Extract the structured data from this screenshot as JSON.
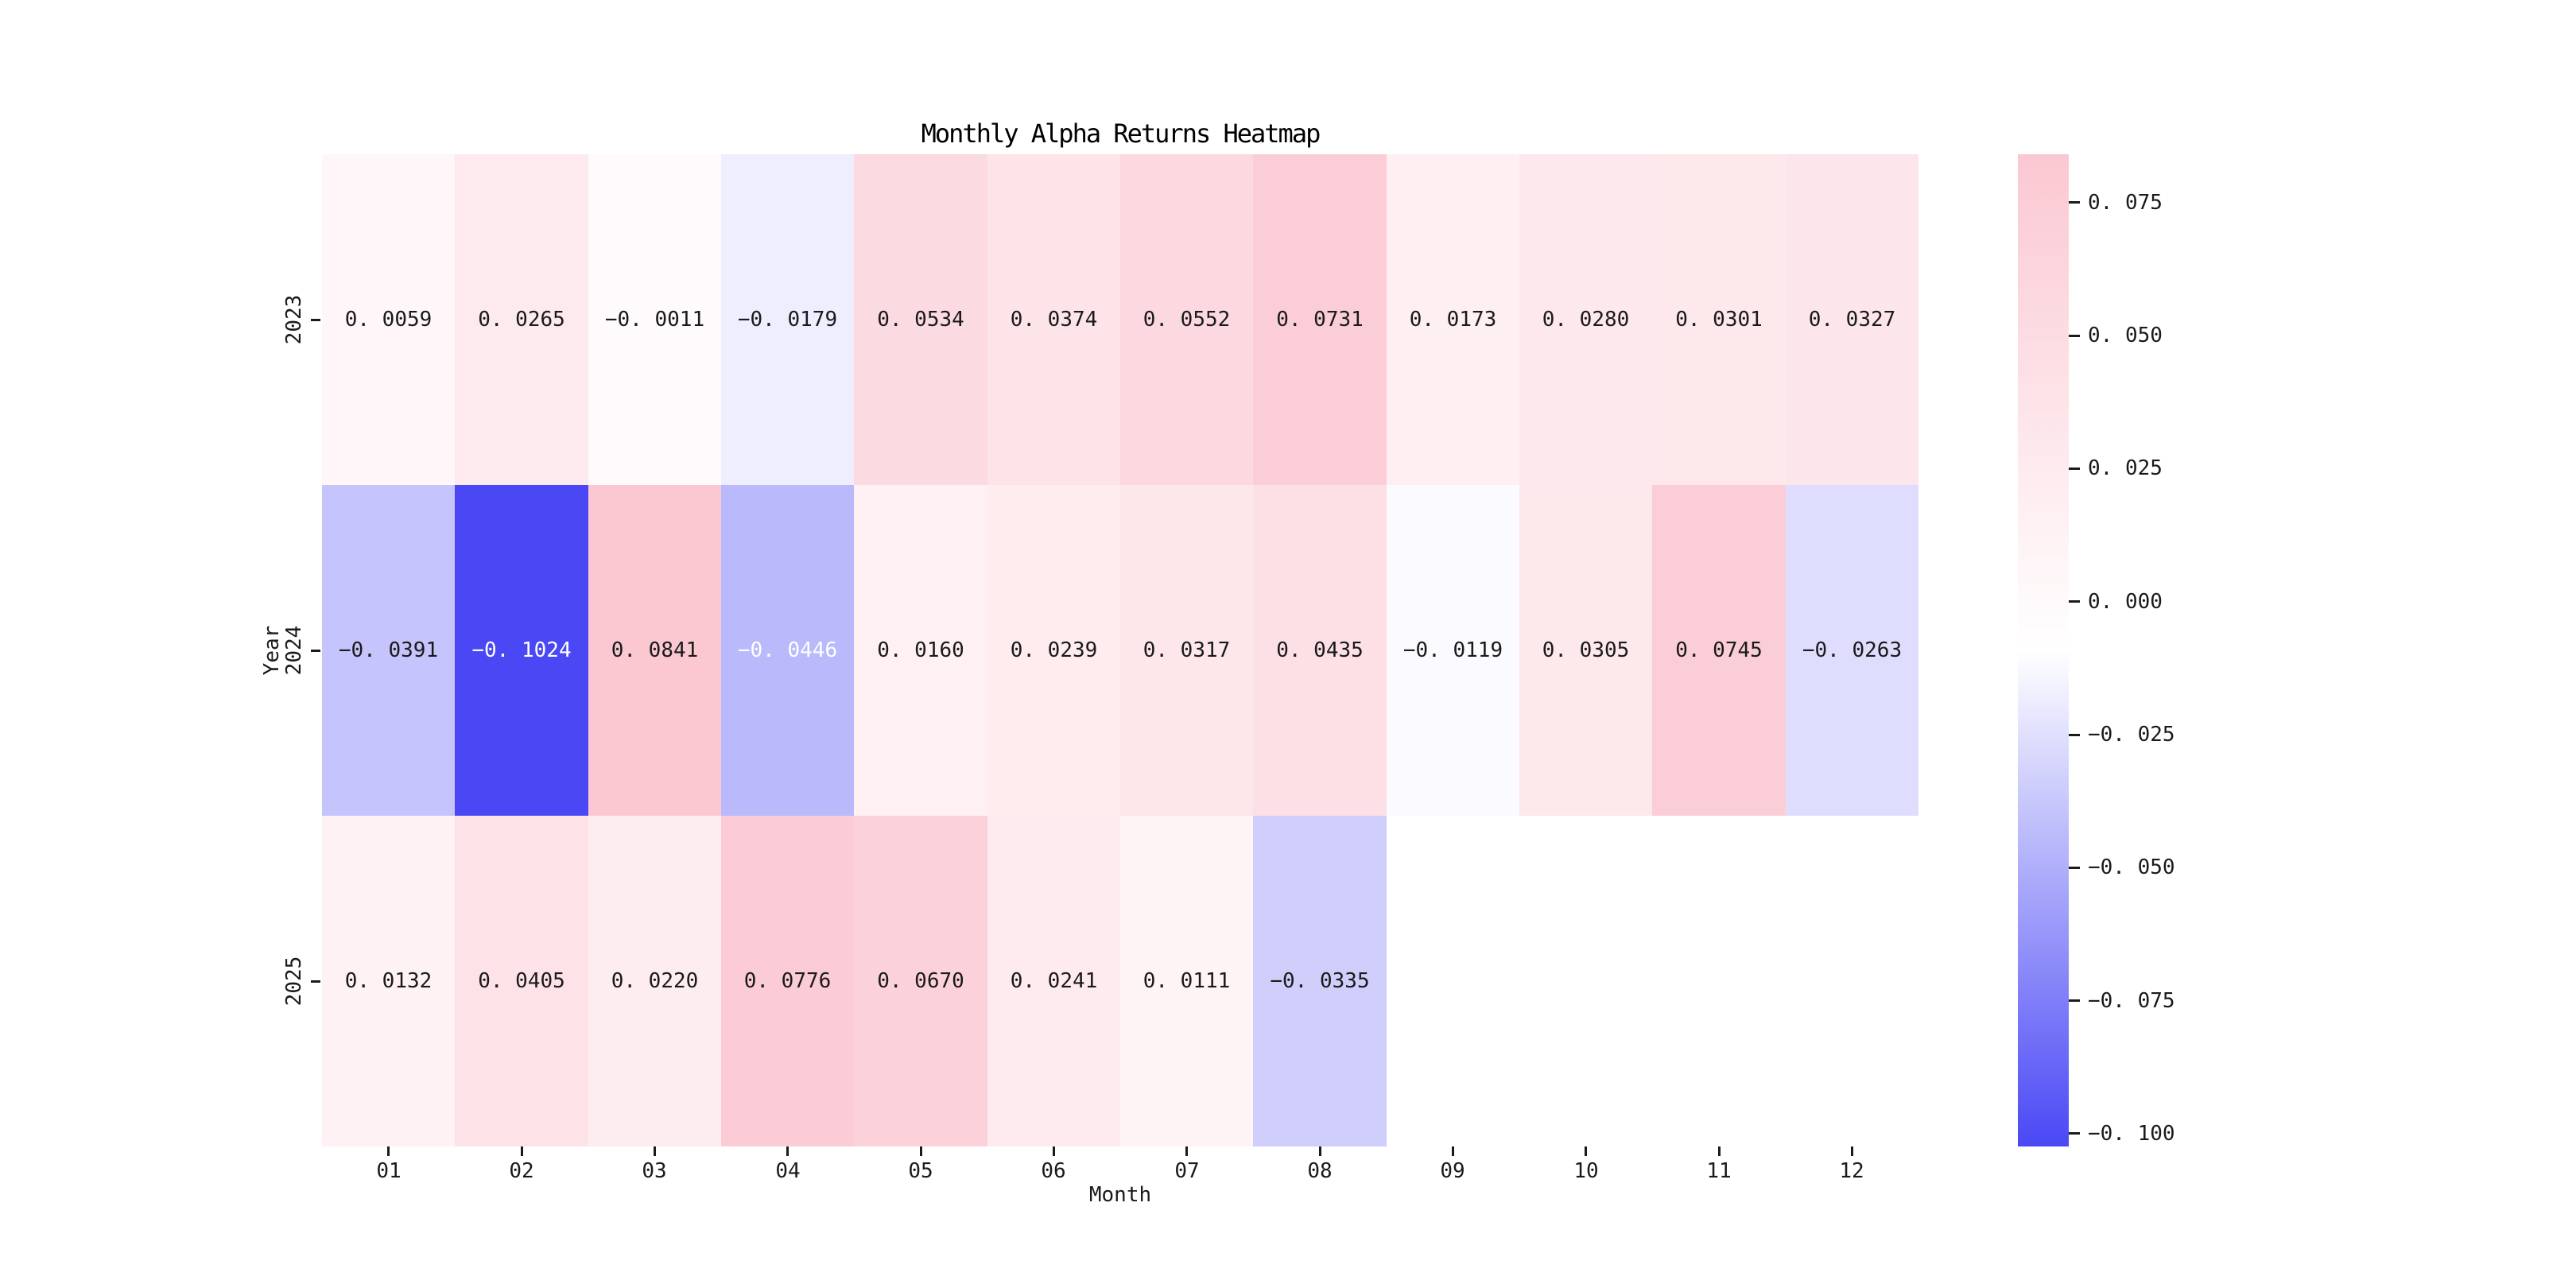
{
  "figure": {
    "background_color": "#ffffff"
  },
  "chart_data": {
    "type": "heatmap",
    "title": "Monthly Alpha Returns Heatmap",
    "xlabel": "Month",
    "ylabel": "Year",
    "x_categories": [
      "01",
      "02",
      "03",
      "04",
      "05",
      "06",
      "07",
      "08",
      "09",
      "10",
      "11",
      "12"
    ],
    "y_categories": [
      "2023",
      "2024",
      "2025"
    ],
    "series": [
      {
        "name": "2023",
        "values": [
          0.0059,
          0.0265,
          -0.0011,
          -0.0179,
          0.0534,
          0.0374,
          0.0552,
          0.0731,
          0.0173,
          0.028,
          0.0301,
          0.0327
        ]
      },
      {
        "name": "2024",
        "values": [
          -0.0391,
          -0.1024,
          0.0841,
          -0.0446,
          0.016,
          0.0239,
          0.0317,
          0.0435,
          -0.0119,
          0.0305,
          0.0745,
          -0.0263
        ]
      },
      {
        "name": "2025",
        "values": [
          0.0132,
          0.0405,
          0.022,
          0.0776,
          0.067,
          0.0241,
          0.0111,
          -0.0335,
          null,
          null,
          null,
          null
        ]
      }
    ],
    "cell_labels": [
      [
        "0. 0059",
        "0. 0265",
        "−0. 0011",
        "−0. 0179",
        "0. 0534",
        "0. 0374",
        "0. 0552",
        "0. 0731",
        "0. 0173",
        "0. 0280",
        "0. 0301",
        "0. 0327"
      ],
      [
        "−0. 0391",
        "−0. 1024",
        "0. 0841",
        "−0. 0446",
        "0. 0160",
        "0. 0239",
        "0. 0317",
        "0. 0435",
        "−0. 0119",
        "0. 0305",
        "0. 0745",
        "−0. 0263"
      ],
      [
        "0. 0132",
        "0. 0405",
        "0. 0220",
        "0. 0776",
        "0. 0670",
        "0. 0241",
        "0. 0111",
        "−0. 0335",
        null,
        null,
        null,
        null
      ]
    ],
    "vmin": -0.1024,
    "vmax": 0.0841,
    "grid": false,
    "legend": false,
    "colorbar": {
      "position": "right",
      "ticks": [
        {
          "value": 0.075,
          "label": "0. 075"
        },
        {
          "value": 0.05,
          "label": "0. 050"
        },
        {
          "value": 0.025,
          "label": "0. 025"
        },
        {
          "value": 0.0,
          "label": "0. 000"
        },
        {
          "value": -0.025,
          "label": "−0. 025"
        },
        {
          "value": -0.05,
          "label": "−0. 050"
        },
        {
          "value": -0.075,
          "label": "−0. 075"
        },
        {
          "value": -0.1,
          "label": "−0. 100"
        }
      ]
    },
    "colors": {
      "negative_end": "#4a48f5",
      "center": "#ffffff",
      "positive_end": "#fbc8d2",
      "annot_dark": "#1a1a1a",
      "annot_light": "#ffffff",
      "tick_color": "#1a1a1a",
      "title_color": "#000000"
    }
  }
}
